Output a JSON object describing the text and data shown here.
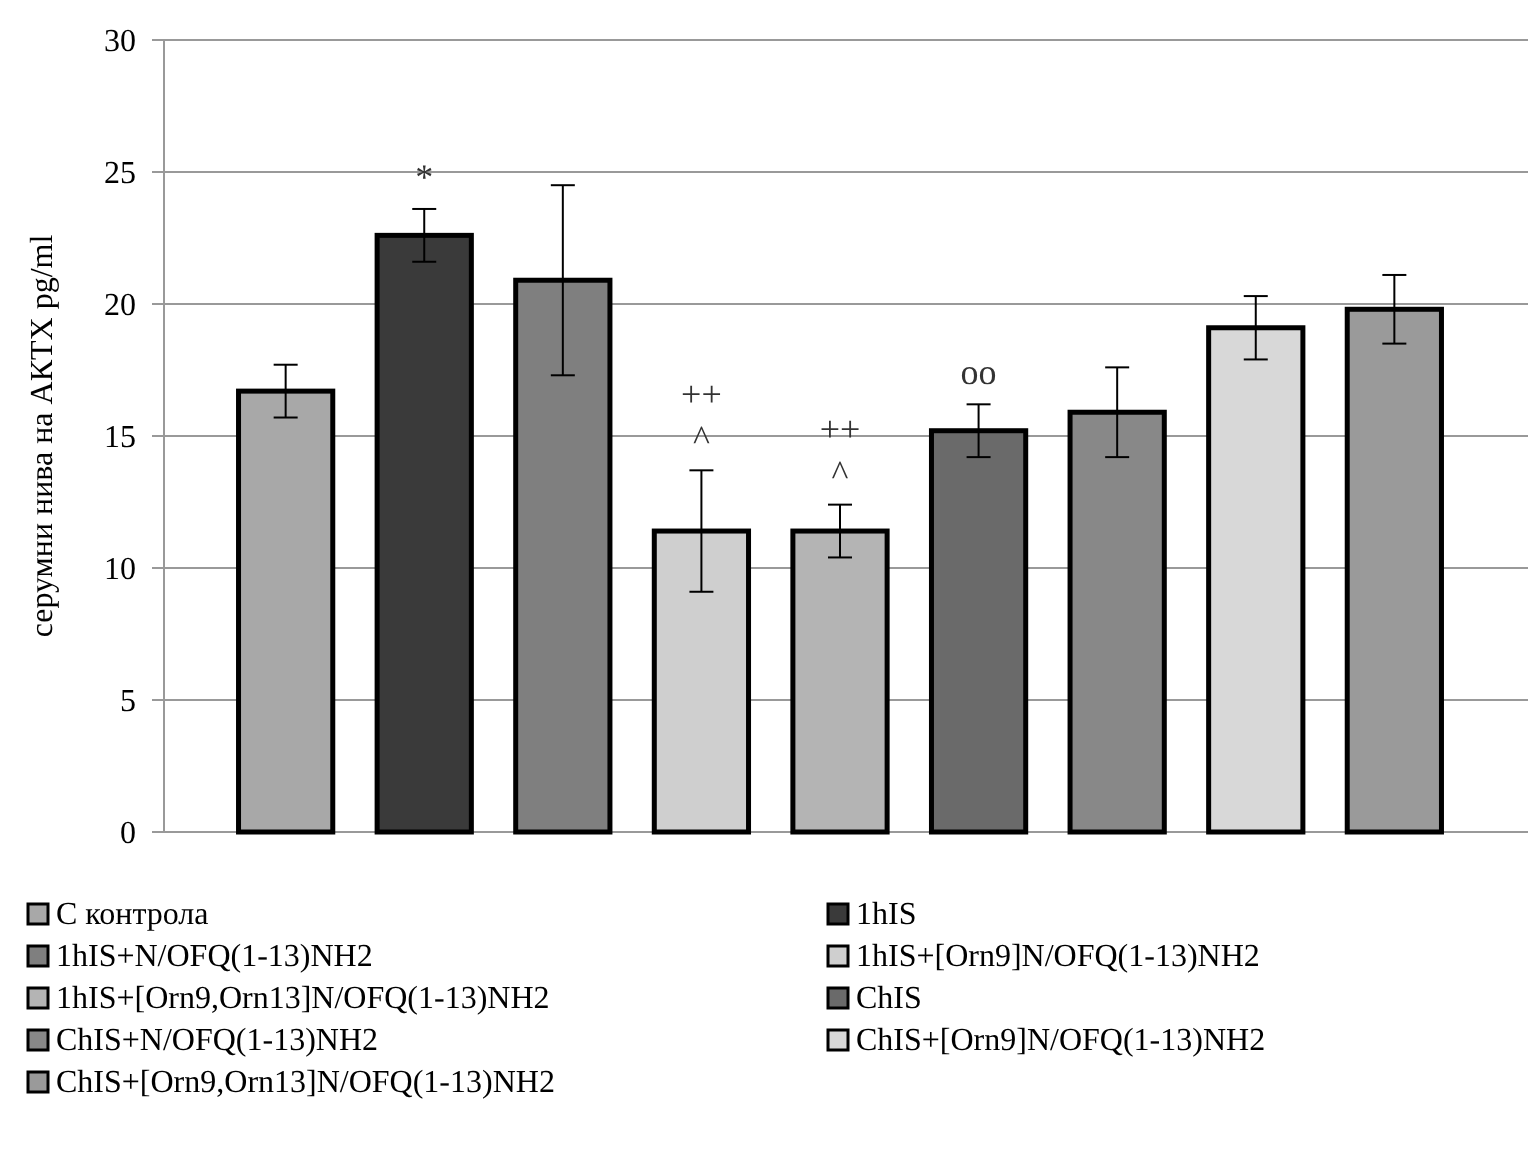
{
  "chart_data": {
    "type": "bar",
    "ylabel": "серумни нива на АКТХ pg/ml",
    "categories": [
      null
    ],
    "ylim": [
      0,
      30
    ],
    "yticks": [
      0,
      5,
      10,
      15,
      20,
      25,
      30
    ],
    "grid": "y",
    "legend": "bottom",
    "series": [
      {
        "name": "С контрола",
        "color": "#a8a8a8",
        "values": [
          16.7
        ],
        "errors": [
          1.0
        ]
      },
      {
        "name": "1hIS",
        "color": "#3a3a3a",
        "values": [
          22.6
        ],
        "errors": [
          1.0
        ],
        "value_labels": [
          "*"
        ]
      },
      {
        "name": "1hIS+N/OFQ(1-13)NH2",
        "color": "#7f7f7f",
        "values": [
          20.9
        ],
        "errors": [
          3.6
        ]
      },
      {
        "name": "1hIS+[Orn9]N/OFQ(1-13)NH2",
        "color": "#cfcfcf",
        "values": [
          11.4
        ],
        "errors": [
          2.3
        ],
        "value_labels": [
          "++\n^"
        ]
      },
      {
        "name": "1hIS+[Orn9,Orn13]N/OFQ(1-13)NH2",
        "color": "#b4b4b4",
        "values": [
          11.4
        ],
        "errors": [
          1.0
        ],
        "value_labels": [
          "++\n^"
        ]
      },
      {
        "name": "ChIS",
        "color": "#6a6a6a",
        "values": [
          15.2
        ],
        "errors": [
          1.0
        ],
        "value_labels": [
          "oo"
        ]
      },
      {
        "name": "ChIS+N/OFQ(1-13)NH2",
        "color": "#888888",
        "values": [
          15.9
        ],
        "errors": [
          1.7
        ]
      },
      {
        "name": "ChIS+[Orn9]N/OFQ(1-13)NH2",
        "color": "#d8d8d8",
        "values": [
          19.1
        ],
        "errors": [
          1.2
        ]
      },
      {
        "name": "ChIS+[Orn9,Orn13]N/OFQ(1-13)NH2",
        "color": "#9a9a9a",
        "values": [
          19.8
        ],
        "errors": [
          1.3
        ]
      }
    ]
  }
}
